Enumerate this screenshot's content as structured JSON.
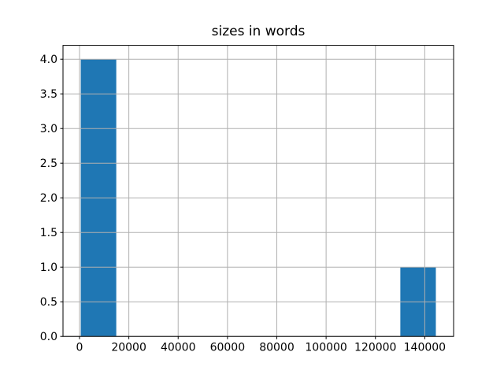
{
  "chart_data": {
    "type": "bar",
    "subtype": "histogram",
    "title": "sizes in words",
    "xlabel": "",
    "ylabel": "",
    "bin_edges": [
      500,
      14900,
      29300,
      43700,
      58100,
      72500,
      86900,
      101300,
      115700,
      130100,
      144500
    ],
    "counts": [
      4,
      0,
      0,
      0,
      0,
      0,
      0,
      0,
      0,
      1
    ],
    "xlim": [
      -6700,
      151700
    ],
    "ylim": [
      0,
      4.2
    ],
    "xticks": [
      0,
      20000,
      40000,
      60000,
      80000,
      100000,
      120000,
      140000
    ],
    "xtick_labels": [
      "0",
      "20000",
      "40000",
      "60000",
      "80000",
      "100000",
      "120000",
      "140000"
    ],
    "yticks": [
      0,
      0.5,
      1,
      1.5,
      2,
      2.5,
      3,
      3.5,
      4
    ],
    "ytick_labels": [
      "0.0",
      "0.5",
      "1.0",
      "1.5",
      "2.0",
      "2.5",
      "3.0",
      "3.5",
      "4.0"
    ],
    "grid": true,
    "grid_above_bars": true,
    "legend": null,
    "bar_color": "#1f77b4",
    "grid_color": "#b0b0b0",
    "axis_color": "#000000",
    "text_color": "#000000",
    "background": "#ffffff"
  }
}
